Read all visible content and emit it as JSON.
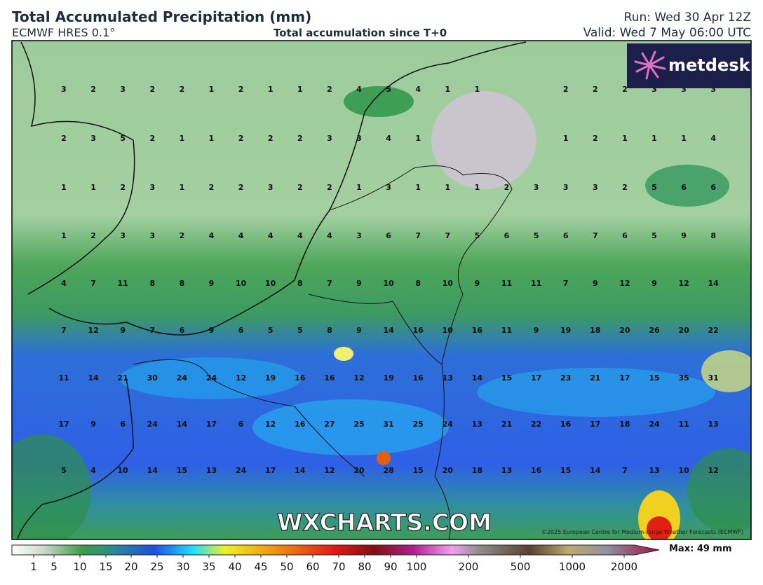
{
  "header": {
    "title": "Total Accumulated Precipitation (mm)",
    "model": "ECMWF HRES 0.1°",
    "subtitle": "Total accumulation since T+0",
    "run": "Run: Wed 30 Apr 12Z",
    "valid": "Valid: Wed 7 May 06:00 UTC"
  },
  "logo": "metdesk",
  "grid_values": [
    [
      3,
      2,
      3,
      2,
      2,
      1,
      2,
      1,
      1,
      2,
      4,
      5,
      4,
      1,
      1,
      null,
      null,
      2,
      2,
      2,
      3,
      3,
      3
    ],
    [
      2,
      3,
      5,
      2,
      1,
      1,
      2,
      2,
      2,
      3,
      3,
      4,
      1,
      null,
      null,
      null,
      null,
      1,
      2,
      1,
      1,
      1,
      4
    ],
    [
      1,
      1,
      2,
      3,
      1,
      2,
      2,
      3,
      2,
      2,
      1,
      3,
      1,
      1,
      1,
      2,
      3,
      3,
      3,
      2,
      5,
      6,
      6
    ],
    [
      1,
      2,
      3,
      3,
      2,
      4,
      4,
      4,
      4,
      4,
      3,
      6,
      7,
      7,
      5,
      6,
      5,
      6,
      7,
      6,
      5,
      9,
      8
    ],
    [
      4,
      7,
      11,
      8,
      8,
      9,
      10,
      10,
      8,
      7,
      9,
      10,
      8,
      10,
      9,
      11,
      11,
      7,
      9,
      12,
      9,
      12,
      14
    ],
    [
      7,
      12,
      9,
      7,
      6,
      9,
      6,
      5,
      5,
      8,
      9,
      14,
      16,
      10,
      16,
      11,
      9,
      19,
      18,
      20,
      26,
      20,
      22
    ],
    [
      11,
      14,
      21,
      30,
      24,
      24,
      12,
      19,
      16,
      16,
      12,
      19,
      16,
      13,
      14,
      15,
      17,
      23,
      21,
      17,
      15,
      35,
      31
    ],
    [
      17,
      9,
      6,
      24,
      14,
      17,
      6,
      12,
      16,
      27,
      25,
      31,
      25,
      24,
      13,
      21,
      22,
      16,
      17,
      18,
      24,
      11,
      13
    ],
    [
      5,
      4,
      10,
      14,
      15,
      13,
      24,
      17,
      14,
      12,
      20,
      28,
      15,
      20,
      18,
      13,
      16,
      15,
      14,
      7,
      13,
      10,
      12
    ]
  ],
  "watermark": "WXCHARTS.COM",
  "copyright": "©2025 European Centre for Medium-range Weather Forecasts (ECMWF)",
  "colorbar": {
    "ticks": [
      1,
      5,
      10,
      15,
      20,
      25,
      30,
      35,
      40,
      45,
      50,
      60,
      70,
      80,
      90,
      100,
      200,
      500,
      1000,
      2000
    ],
    "max_label": "Max: 49 mm"
  }
}
